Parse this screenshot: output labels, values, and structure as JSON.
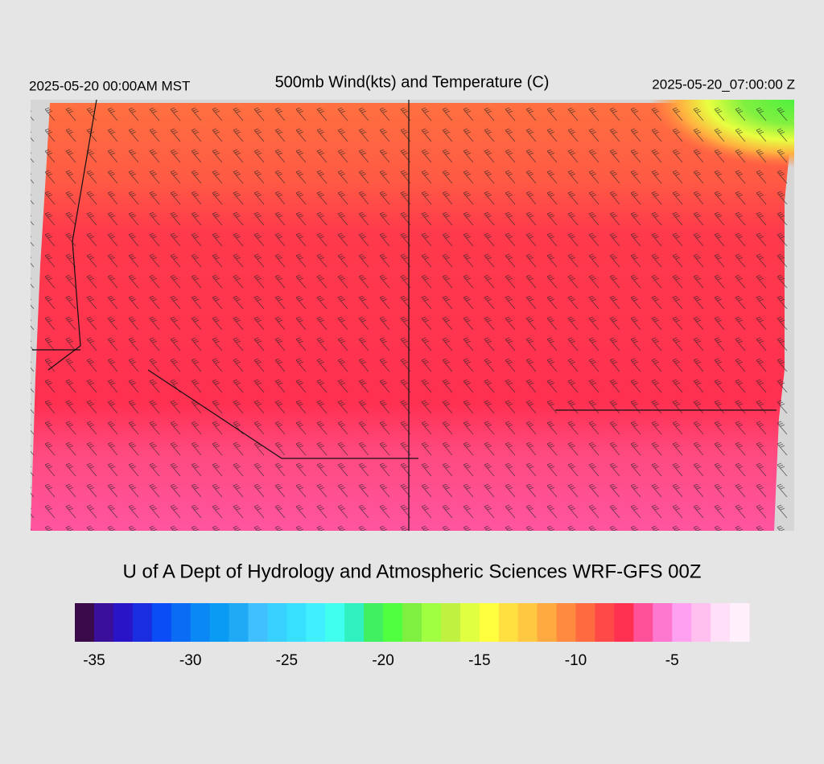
{
  "header": {
    "left": "2025-05-20 00:00AM MST",
    "title": "500mb Wind(kts) and Temperature (C)",
    "right": "2025-05-20_07:00:00 Z"
  },
  "credit": "U of A Dept of Hydrology and Atmospheric Sciences WRF-GFS 00Z",
  "colorbar": {
    "lim": [
      -36,
      -1
    ],
    "ticks": [
      -35,
      -30,
      -25,
      -20,
      -15,
      -10,
      -5
    ],
    "colors": [
      "#3a0a4a",
      "#3a0f9a",
      "#2a14c8",
      "#1a2ee0",
      "#0a4cf5",
      "#0a6cf5",
      "#0a88f5",
      "#0a9cf5",
      "#20aaf5",
      "#40c0ff",
      "#38d0ff",
      "#38e0ff",
      "#40f0ff",
      "#40ffee",
      "#30f0c0",
      "#40f060",
      "#50ff40",
      "#80f040",
      "#a0ff40",
      "#c0f040",
      "#e0ff40",
      "#ffff40",
      "#ffe040",
      "#ffc840",
      "#ffaa40",
      "#ff8a40",
      "#ff6a40",
      "#ff4848",
      "#ff3050",
      "#ff5098",
      "#ff78d0",
      "#ffa0f0",
      "#ffc0f0",
      "#ffe0f8",
      "#fff0fc"
    ]
  }
}
